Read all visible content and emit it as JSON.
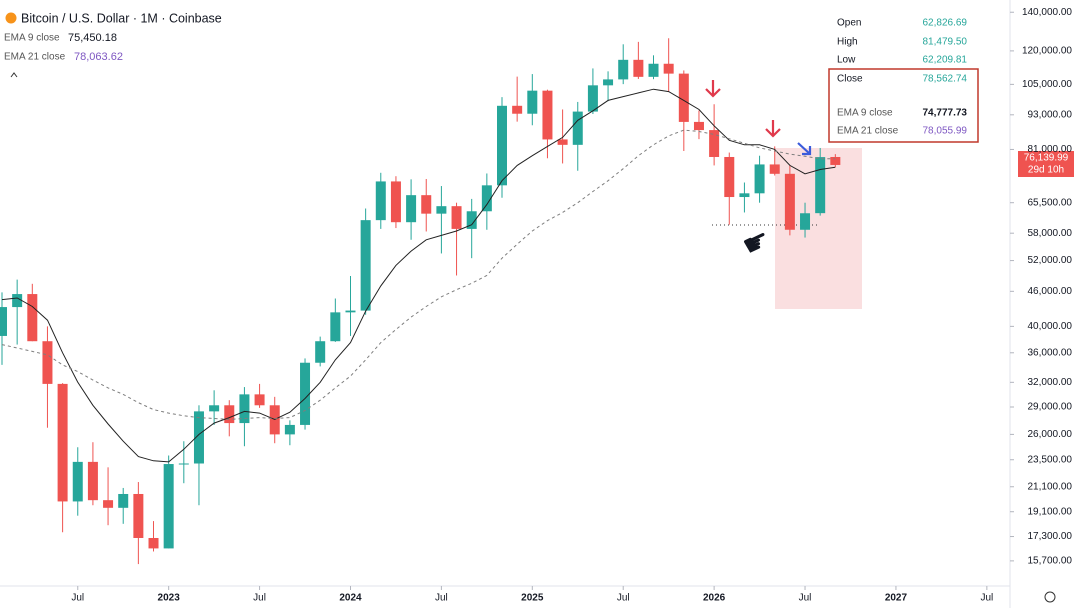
{
  "chart_data": {
    "type": "candlestick",
    "title": "Bitcoin / U.S. Dollar · 1M · Coinbase",
    "log_scale": true,
    "up_color": "#26a69a",
    "down_color": "#ef5350",
    "x": [
      "2022-02",
      "2022-03",
      "2022-04",
      "2022-05",
      "2022-06",
      "2022-07",
      "2022-08",
      "2022-09",
      "2022-10",
      "2022-11",
      "2022-12",
      "2023-01",
      "2023-02",
      "2023-03",
      "2023-04",
      "2023-05",
      "2023-06",
      "2023-07",
      "2023-08",
      "2023-09",
      "2023-10",
      "2023-11",
      "2023-12",
      "2024-01",
      "2024-02",
      "2024-03",
      "2024-04",
      "2024-05",
      "2024-06",
      "2024-07",
      "2024-08",
      "2024-09",
      "2024-10",
      "2024-11",
      "2024-12",
      "2025-01",
      "2025-02",
      "2025-03",
      "2025-04",
      "2025-05",
      "2025-06",
      "2025-07",
      "2025-08",
      "2025-09",
      "2025-10",
      "2025-11",
      "2025-12",
      "2026-01",
      "2026-02",
      "2026-03",
      "2026-04",
      "2026-05",
      "2026-06",
      "2026-07",
      "2026-08",
      "2026-09"
    ],
    "open": [
      38500,
      43200,
      45500,
      37700,
      31800,
      19900,
      23300,
      20000,
      19400,
      20500,
      17200,
      16500,
      23100,
      23150,
      28500,
      29200,
      27200,
      30500,
      29200,
      26000,
      27000,
      34600,
      37700,
      42300,
      42600,
      61100,
      71300,
      60600,
      67500,
      62700,
      64600,
      59000,
      63300,
      70200,
      96400,
      93400,
      102400,
      84300,
      82500,
      94200,
      104600,
      107100,
      115800,
      108200,
      114000,
      109600,
      90400,
      87500,
      78600,
      67000,
      68000,
      76300,
      73500,
      58800,
      62826.69,
      78600
    ],
    "high": [
      45800,
      48200,
      47400,
      40000,
      31900,
      24700,
      25200,
      22800,
      21000,
      21500,
      18400,
      23900,
      25300,
      29200,
      31000,
      29800,
      31400,
      31800,
      30200,
      27500,
      35200,
      38400,
      44700,
      48900,
      64000,
      73800,
      72800,
      71900,
      72000,
      70000,
      65500,
      66500,
      73600,
      99800,
      108300,
      109400,
      102800,
      95000,
      97900,
      111900,
      110600,
      123200,
      124400,
      117900,
      126200,
      111000,
      94600,
      97000,
      80000,
      71000,
      79000,
      82000,
      76000,
      65500,
      81479.5,
      79500
    ],
    "low": [
      34300,
      37200,
      37700,
      26700,
      17600,
      18800,
      19600,
      18100,
      18200,
      15500,
      16300,
      16500,
      21400,
      19600,
      27000,
      25800,
      24800,
      28900,
      25100,
      24900,
      26500,
      34100,
      37600,
      38500,
      41900,
      59000,
      59200,
      56500,
      58400,
      53500,
      49000,
      52500,
      58800,
      66800,
      90500,
      89200,
      78200,
      76600,
      74400,
      93300,
      98200,
      105100,
      107300,
      107200,
      102000,
      80500,
      84400,
      76000,
      60000,
      63000,
      65500,
      73000,
      57500,
      57000,
      62209.81,
      75500
    ],
    "close": [
      43200,
      45500,
      37700,
      31800,
      19900,
      23300,
      20000,
      19400,
      20500,
      17200,
      16500,
      23100,
      23150,
      28500,
      29200,
      27200,
      30500,
      29200,
      26000,
      27000,
      34600,
      37700,
      42300,
      42600,
      61100,
      71300,
      60600,
      67500,
      62700,
      64600,
      59000,
      63300,
      70200,
      96400,
      93400,
      102400,
      84300,
      82500,
      94200,
      104600,
      107100,
      115800,
      108200,
      114000,
      109600,
      90400,
      87500,
      78600,
      67000,
      68000,
      76300,
      73500,
      58800,
      62800,
      78562.74,
      76139.99
    ],
    "lines": [
      {
        "name": "EMA 9 close",
        "value_label": "75,450.18",
        "color": "#222222",
        "dashed": false,
        "values": [
          44500,
          44800,
          43300,
          41000,
          36000,
          32000,
          29200,
          27100,
          25300,
          23800,
          23400,
          23300,
          24500,
          26000,
          27200,
          27800,
          28500,
          28300,
          27600,
          28400,
          30000,
          32000,
          35000,
          37500,
          42500,
          47000,
          51000,
          54000,
          56500,
          57500,
          58500,
          60000,
          65000,
          71500,
          76000,
          79000,
          82000,
          85000,
          91000,
          94500,
          98500,
          100000,
          101500,
          103000,
          102000,
          98500,
          95000,
          89000,
          84000,
          82500,
          82500,
          81000,
          76000,
          73500,
          74777.73,
          75450.18
        ]
      },
      {
        "name": "EMA 21 close",
        "value_label": "78,063.62",
        "color": "#7e7e7e",
        "dashed": true,
        "values": [
          37200,
          36700,
          36200,
          35700,
          34300,
          33400,
          32300,
          31300,
          30500,
          29500,
          28700,
          28300,
          28000,
          27800,
          27700,
          27600,
          27700,
          27800,
          27700,
          27800,
          28600,
          29800,
          31300,
          32800,
          35000,
          37500,
          39500,
          41500,
          43300,
          45000,
          46300,
          47500,
          49000,
          52500,
          55500,
          58500,
          61000,
          63000,
          65500,
          68500,
          71500,
          75000,
          79000,
          82500,
          85500,
          87500,
          87000,
          86000,
          84500,
          83000,
          81500,
          80500,
          79500,
          78800,
          78055.99,
          78063.62
        ]
      }
    ],
    "data_window": [
      {
        "label": "Open",
        "value": "62,826.69"
      },
      {
        "label": "High",
        "value": "81,479.50"
      },
      {
        "label": "Low",
        "value": "62,209.81"
      },
      {
        "label": "Close",
        "value": "78,562.74"
      },
      {
        "label": "EMA 9 close",
        "value": "74,777.73"
      },
      {
        "label": "EMA 21 close",
        "value": "78,055.99"
      }
    ],
    "price_tag": {
      "value": 76139.99,
      "label": "76,139.99",
      "countdown": "29d 10h"
    },
    "xlim": [
      "2022-02",
      "2027-08"
    ],
    "xticks": [
      {
        "value": "2022-07",
        "label": "Jul"
      },
      {
        "value": "2023-01",
        "label": "2023"
      },
      {
        "value": "2023-07",
        "label": "Jul"
      },
      {
        "value": "2024-01",
        "label": "2024"
      },
      {
        "value": "2024-07",
        "label": "Jul"
      },
      {
        "value": "2025-01",
        "label": "2025"
      },
      {
        "value": "2025-07",
        "label": "Jul"
      },
      {
        "value": "2026-01",
        "label": "2026"
      },
      {
        "value": "2026-07",
        "label": "Jul"
      },
      {
        "value": "2027-01",
        "label": "2027"
      },
      {
        "value": "2027-07",
        "label": "Jul"
      }
    ],
    "ylim": [
      14260,
      147000
    ],
    "yticks": [
      {
        "value": 140000,
        "label": "140,000.00"
      },
      {
        "value": 120000,
        "label": "120,000.00"
      },
      {
        "value": 105000,
        "label": "105,000.00"
      },
      {
        "value": 93000,
        "label": "93,000.00"
      },
      {
        "value": 81000,
        "label": "81,000.00"
      },
      {
        "value": 65500,
        "label": "65,500.00"
      },
      {
        "value": 58000,
        "label": "58,000.00"
      },
      {
        "value": 52000,
        "label": "52,000.00"
      },
      {
        "value": 46000,
        "label": "46,000.00"
      },
      {
        "value": 40000,
        "label": "40,000.00"
      },
      {
        "value": 36000,
        "label": "36,000.00"
      },
      {
        "value": 32000,
        "label": "32,000.00"
      },
      {
        "value": 29000,
        "label": "29,000.00"
      },
      {
        "value": 26000,
        "label": "26,000.00"
      },
      {
        "value": 23500,
        "label": "23,500.00"
      },
      {
        "value": 21100,
        "label": "21,100.00"
      },
      {
        "value": 19100,
        "label": "19,100.00"
      },
      {
        "value": 17300,
        "label": "17,300.00"
      },
      {
        "value": 15700,
        "label": "15,700.00"
      }
    ]
  }
}
